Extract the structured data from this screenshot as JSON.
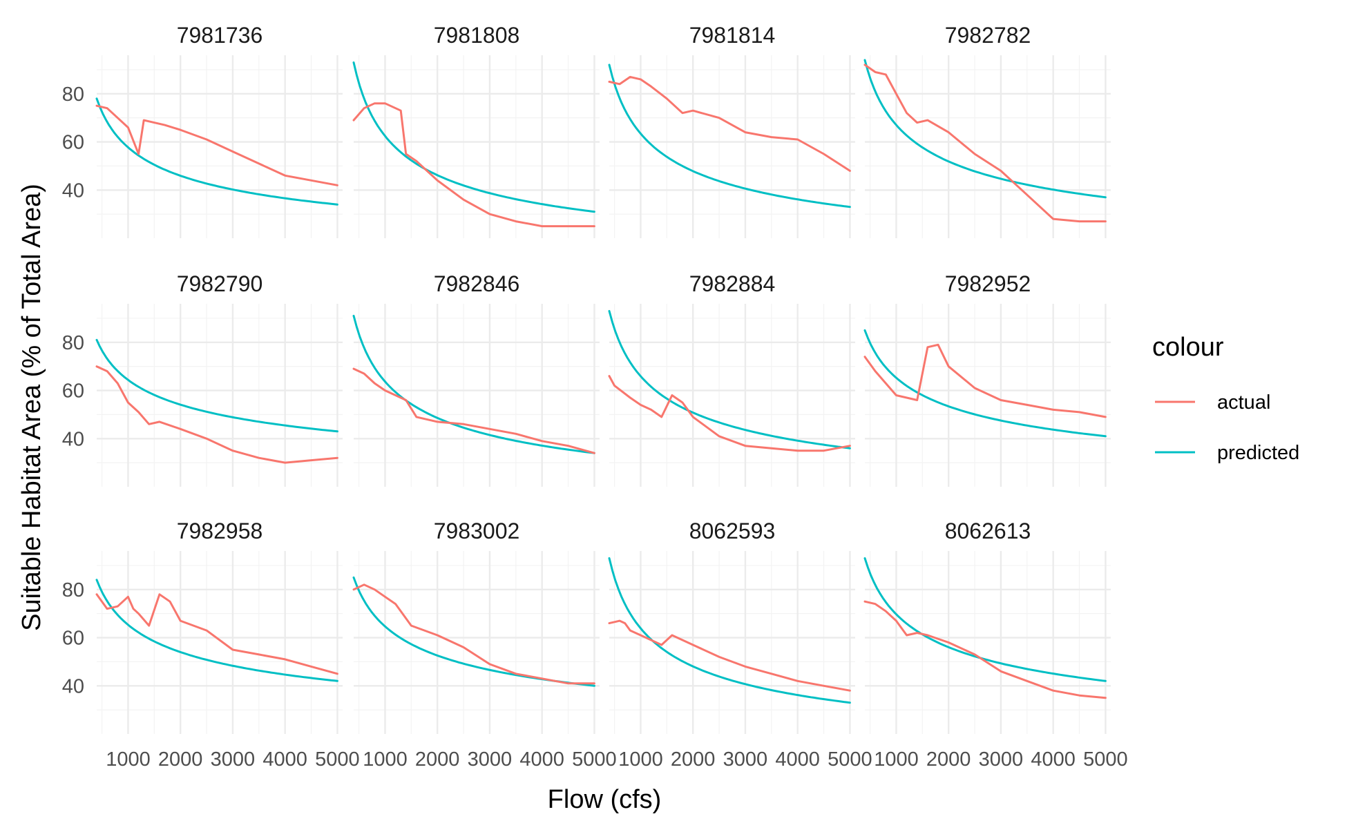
{
  "chart_data": {
    "type": "line",
    "facet_layout": "3x4 grid",
    "xlabel": "Flow (cfs)",
    "ylabel": "Suitable Habitat Area (% of Total Area)",
    "xlim": [
      400,
      5100
    ],
    "ylim": [
      20,
      96
    ],
    "x_ticks": [
      1000,
      2000,
      3000,
      4000,
      5000
    ],
    "x_tick_labels": [
      "1000",
      "2000",
      "3000",
      "4000",
      "5000"
    ],
    "y_ticks": [
      40,
      60,
      80
    ],
    "y_tick_labels": [
      "40",
      "60",
      "80"
    ],
    "grid": true,
    "legend": {
      "title": "colour",
      "position": "right",
      "entries": [
        {
          "label": "actual",
          "color": "#F8766D"
        },
        {
          "label": "predicted",
          "color": "#00BFC4"
        }
      ]
    },
    "series_colors": {
      "actual": "#F8766D",
      "predicted": "#00BFC4"
    },
    "panels": [
      {
        "title": "7981736",
        "actual": [
          [
            400,
            75
          ],
          [
            600,
            74
          ],
          [
            800,
            70
          ],
          [
            1000,
            66
          ],
          [
            1200,
            55
          ],
          [
            1300,
            69
          ],
          [
            1500,
            68
          ],
          [
            1700,
            67
          ],
          [
            2000,
            65
          ],
          [
            2500,
            61
          ],
          [
            3000,
            56
          ],
          [
            3500,
            51
          ],
          [
            4000,
            46
          ],
          [
            4500,
            44
          ],
          [
            5000,
            42
          ]
        ],
        "predicted_range": [
          78,
          34
        ]
      },
      {
        "title": "7981808",
        "actual": [
          [
            400,
            69
          ],
          [
            600,
            74
          ],
          [
            800,
            76
          ],
          [
            1000,
            76
          ],
          [
            1200,
            74
          ],
          [
            1300,
            73
          ],
          [
            1400,
            55
          ],
          [
            1600,
            52
          ],
          [
            2000,
            44
          ],
          [
            2500,
            36
          ],
          [
            3000,
            30
          ],
          [
            3500,
            27
          ],
          [
            4000,
            25
          ],
          [
            4500,
            25
          ],
          [
            5000,
            25
          ]
        ],
        "predicted_range": [
          93,
          31
        ]
      },
      {
        "title": "7981814",
        "actual": [
          [
            400,
            85
          ],
          [
            600,
            84
          ],
          [
            800,
            87
          ],
          [
            1000,
            86
          ],
          [
            1200,
            83
          ],
          [
            1500,
            78
          ],
          [
            1800,
            72
          ],
          [
            2000,
            73
          ],
          [
            2500,
            70
          ],
          [
            3000,
            64
          ],
          [
            3500,
            62
          ],
          [
            4000,
            61
          ],
          [
            4500,
            55
          ],
          [
            5000,
            48
          ]
        ],
        "predicted_range": [
          92,
          33
        ]
      },
      {
        "title": "7982782",
        "actual": [
          [
            400,
            92
          ],
          [
            600,
            89
          ],
          [
            800,
            88
          ],
          [
            1000,
            80
          ],
          [
            1200,
            72
          ],
          [
            1400,
            68
          ],
          [
            1600,
            69
          ],
          [
            2000,
            64
          ],
          [
            2500,
            55
          ],
          [
            3000,
            48
          ],
          [
            3500,
            38
          ],
          [
            4000,
            28
          ],
          [
            4500,
            27
          ],
          [
            5000,
            27
          ]
        ],
        "predicted_range": [
          94,
          37
        ]
      },
      {
        "title": "7982790",
        "actual": [
          [
            400,
            70
          ],
          [
            600,
            68
          ],
          [
            800,
            63
          ],
          [
            1000,
            55
          ],
          [
            1200,
            51
          ],
          [
            1400,
            46
          ],
          [
            1600,
            47
          ],
          [
            2000,
            44
          ],
          [
            2500,
            40
          ],
          [
            3000,
            35
          ],
          [
            3500,
            32
          ],
          [
            4000,
            30
          ],
          [
            4500,
            31
          ],
          [
            5000,
            32
          ]
        ],
        "predicted_range": [
          81,
          43
        ]
      },
      {
        "title": "7982846",
        "actual": [
          [
            400,
            69
          ],
          [
            600,
            67
          ],
          [
            800,
            63
          ],
          [
            1000,
            60
          ],
          [
            1200,
            58
          ],
          [
            1400,
            56
          ],
          [
            1600,
            49
          ],
          [
            2000,
            47
          ],
          [
            2500,
            46
          ],
          [
            3000,
            44
          ],
          [
            3500,
            42
          ],
          [
            4000,
            39
          ],
          [
            4500,
            37
          ],
          [
            5000,
            34
          ]
        ],
        "predicted_range": [
          91,
          34
        ]
      },
      {
        "title": "7982884",
        "actual": [
          [
            400,
            66
          ],
          [
            500,
            62
          ],
          [
            800,
            57
          ],
          [
            1000,
            54
          ],
          [
            1200,
            52
          ],
          [
            1400,
            49
          ],
          [
            1600,
            58
          ],
          [
            1800,
            55
          ],
          [
            2000,
            49
          ],
          [
            2500,
            41
          ],
          [
            3000,
            37
          ],
          [
            3500,
            36
          ],
          [
            4000,
            35
          ],
          [
            4500,
            35
          ],
          [
            5000,
            37
          ]
        ],
        "predicted_range": [
          93,
          36
        ]
      },
      {
        "title": "7982952",
        "actual": [
          [
            400,
            74
          ],
          [
            600,
            68
          ],
          [
            800,
            63
          ],
          [
            1000,
            58
          ],
          [
            1200,
            57
          ],
          [
            1400,
            56
          ],
          [
            1600,
            78
          ],
          [
            1800,
            79
          ],
          [
            2000,
            70
          ],
          [
            2500,
            61
          ],
          [
            3000,
            56
          ],
          [
            3500,
            54
          ],
          [
            4000,
            52
          ],
          [
            4500,
            51
          ],
          [
            5000,
            49
          ]
        ],
        "predicted_range": [
          85,
          41
        ]
      },
      {
        "title": "7982958",
        "actual": [
          [
            400,
            78
          ],
          [
            600,
            72
          ],
          [
            800,
            73
          ],
          [
            1000,
            77
          ],
          [
            1100,
            72
          ],
          [
            1200,
            70
          ],
          [
            1400,
            65
          ],
          [
            1600,
            78
          ],
          [
            1800,
            75
          ],
          [
            2000,
            67
          ],
          [
            2500,
            63
          ],
          [
            3000,
            55
          ],
          [
            3500,
            53
          ],
          [
            4000,
            51
          ],
          [
            4500,
            48
          ],
          [
            5000,
            45
          ]
        ],
        "predicted_range": [
          84,
          42
        ]
      },
      {
        "title": "7983002",
        "actual": [
          [
            400,
            80
          ],
          [
            600,
            82
          ],
          [
            800,
            80
          ],
          [
            1000,
            77
          ],
          [
            1200,
            74
          ],
          [
            1500,
            65
          ],
          [
            2000,
            61
          ],
          [
            2500,
            56
          ],
          [
            3000,
            49
          ],
          [
            3500,
            45
          ],
          [
            4000,
            43
          ],
          [
            4500,
            41
          ],
          [
            5000,
            41
          ]
        ],
        "predicted_range": [
          85,
          40
        ]
      },
      {
        "title": "8062593",
        "actual": [
          [
            400,
            66
          ],
          [
            600,
            67
          ],
          [
            700,
            66
          ],
          [
            800,
            63
          ],
          [
            1000,
            61
          ],
          [
            1200,
            59
          ],
          [
            1400,
            57
          ],
          [
            1600,
            61
          ],
          [
            2000,
            57
          ],
          [
            2500,
            52
          ],
          [
            3000,
            48
          ],
          [
            3500,
            45
          ],
          [
            4000,
            42
          ],
          [
            4500,
            40
          ],
          [
            5000,
            38
          ]
        ],
        "predicted_range": [
          93,
          33
        ]
      },
      {
        "title": "8062613",
        "actual": [
          [
            400,
            75
          ],
          [
            600,
            74
          ],
          [
            800,
            71
          ],
          [
            1000,
            67
          ],
          [
            1200,
            61
          ],
          [
            1400,
            62
          ],
          [
            1600,
            61
          ],
          [
            2000,
            58
          ],
          [
            2500,
            53
          ],
          [
            3000,
            46
          ],
          [
            3500,
            42
          ],
          [
            4000,
            38
          ],
          [
            4500,
            36
          ],
          [
            5000,
            35
          ]
        ],
        "predicted_range": [
          93,
          42
        ]
      }
    ]
  }
}
